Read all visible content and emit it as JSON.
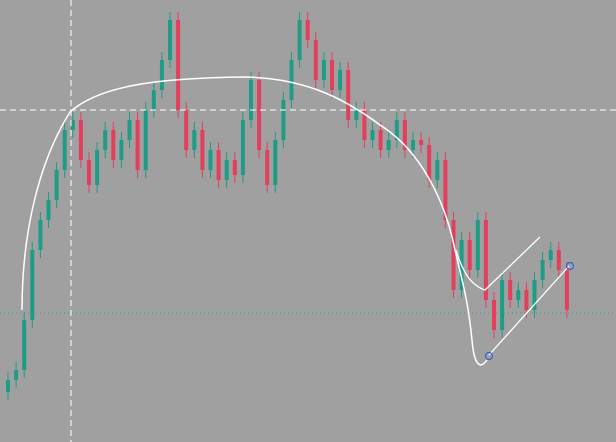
{
  "chart_data": {
    "type": "candlestick",
    "up_color": "#1e9c86",
    "down_color": "#e23f5c",
    "ylim": [
      0,
      442
    ],
    "open": [
      50,
      62,
      72,
      122,
      192,
      222,
      242,
      272,
      312,
      322,
      282,
      257,
      292,
      312,
      282,
      302,
      322,
      272,
      332,
      352,
      382,
      422,
      332,
      292,
      312,
      272,
      292,
      262,
      282,
      267,
      322,
      362,
      292,
      257,
      302,
      342,
      382,
      422,
      402,
      362,
      382,
      352,
      372,
      322,
      332,
      302,
      312,
      292,
      302,
      322,
      292,
      302,
      297,
      262,
      282,
      222,
      152,
      202,
      172,
      222,
      142,
      112,
      162,
      142,
      152,
      132,
      162,
      182,
      192,
      172
    ],
    "high": [
      70,
      80,
      130,
      200,
      230,
      250,
      280,
      320,
      330,
      330,
      290,
      300,
      320,
      320,
      310,
      330,
      330,
      340,
      360,
      390,
      430,
      430,
      340,
      320,
      320,
      300,
      300,
      290,
      290,
      330,
      370,
      370,
      300,
      310,
      350,
      390,
      430,
      430,
      410,
      390,
      390,
      380,
      380,
      340,
      340,
      320,
      320,
      310,
      330,
      330,
      310,
      310,
      305,
      290,
      290,
      230,
      210,
      210,
      230,
      230,
      150,
      170,
      170,
      160,
      160,
      170,
      190,
      200,
      200,
      180
    ],
    "low": [
      42,
      54,
      64,
      114,
      184,
      214,
      234,
      264,
      304,
      274,
      249,
      249,
      284,
      274,
      274,
      294,
      264,
      264,
      324,
      344,
      374,
      324,
      284,
      284,
      264,
      264,
      254,
      254,
      259,
      259,
      314,
      284,
      249,
      249,
      294,
      334,
      374,
      394,
      354,
      354,
      344,
      344,
      314,
      314,
      294,
      294,
      284,
      284,
      294,
      284,
      284,
      289,
      254,
      254,
      214,
      144,
      144,
      164,
      164,
      134,
      104,
      104,
      134,
      134,
      124,
      124,
      154,
      174,
      164,
      124
    ],
    "close": [
      62,
      72,
      122,
      192,
      222,
      242,
      272,
      312,
      322,
      282,
      257,
      292,
      312,
      282,
      302,
      322,
      272,
      332,
      352,
      382,
      422,
      332,
      292,
      312,
      272,
      292,
      262,
      282,
      267,
      322,
      362,
      292,
      257,
      302,
      342,
      382,
      422,
      402,
      362,
      382,
      352,
      372,
      322,
      332,
      302,
      312,
      292,
      302,
      322,
      292,
      302,
      297,
      262,
      282,
      222,
      152,
      202,
      172,
      222,
      142,
      112,
      162,
      142,
      152,
      132,
      162,
      182,
      192,
      172,
      132
    ]
  }
}
